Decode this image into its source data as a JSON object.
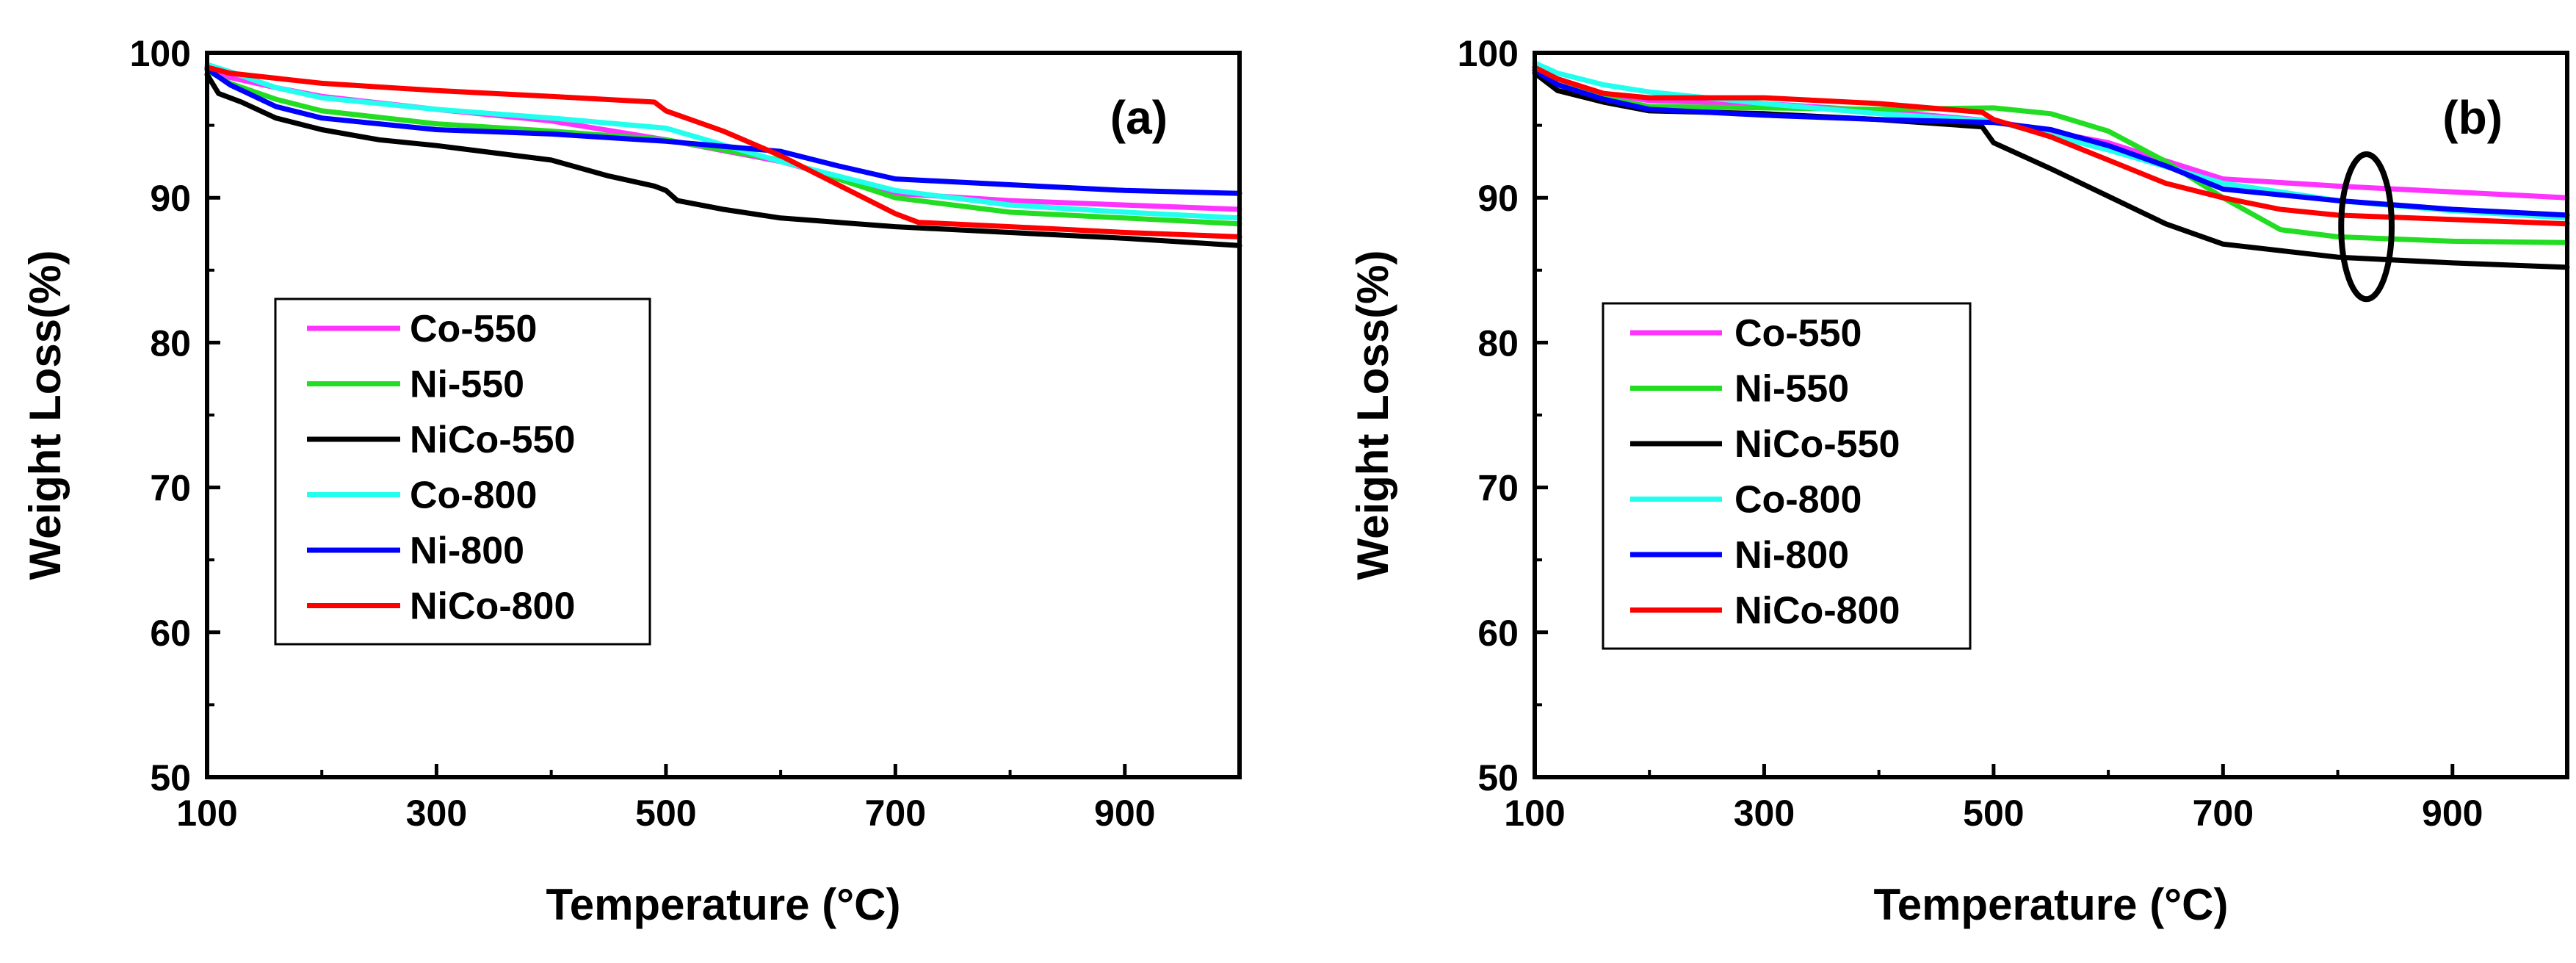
{
  "chart_data": [
    {
      "type": "line",
      "panel_label": "(a)",
      "xlabel": "Temperature (°C)",
      "ylabel": "Weight Loss(%)",
      "xlim": [
        100,
        1000
      ],
      "ylim": [
        50,
        100
      ],
      "xticks": [
        100,
        300,
        500,
        700,
        900
      ],
      "xtick_labels": [
        "100",
        "300",
        "500",
        "700",
        "900"
      ],
      "yticks": [
        50,
        60,
        70,
        80,
        90,
        100
      ],
      "ytick_labels": [
        "50",
        "60",
        "70",
        "80",
        "90",
        "100"
      ],
      "legend_placement": "lower-left",
      "series": [
        {
          "name": "Co-550",
          "color": "#ff33ff",
          "x": [
            100,
            120,
            160,
            200,
            300,
            400,
            500,
            600,
            700,
            800,
            900,
            1000
          ],
          "y": [
            99,
            98.3,
            97.6,
            97,
            96.1,
            95.3,
            94,
            92.5,
            90.3,
            89.8,
            89.5,
            89.2
          ]
        },
        {
          "name": "Ni-550",
          "color": "#22dd22",
          "x": [
            100,
            120,
            160,
            200,
            300,
            400,
            500,
            600,
            700,
            800,
            900,
            1000
          ],
          "y": [
            98.8,
            97.9,
            96.8,
            96,
            95.1,
            94.6,
            94,
            92.6,
            90,
            89,
            88.6,
            88.2
          ]
        },
        {
          "name": "NiCo-550",
          "color": "#000000",
          "x": [
            100,
            110,
            130,
            160,
            200,
            250,
            300,
            400,
            450,
            490,
            500,
            510,
            550,
            600,
            700,
            800,
            900,
            1000
          ],
          "y": [
            98.5,
            97.2,
            96.6,
            95.5,
            94.7,
            94,
            93.6,
            92.6,
            91.5,
            90.8,
            90.5,
            89.8,
            89.2,
            88.6,
            88,
            87.6,
            87.2,
            86.7
          ]
        },
        {
          "name": "Co-800",
          "color": "#22ffee",
          "x": [
            100,
            120,
            160,
            200,
            300,
            400,
            500,
            600,
            700,
            800,
            900,
            1000
          ],
          "y": [
            99.2,
            98.7,
            97.6,
            96.9,
            96.1,
            95.5,
            94.8,
            92.5,
            90.5,
            89.5,
            89,
            88.6
          ]
        },
        {
          "name": "Ni-800",
          "color": "#0000ff",
          "x": [
            100,
            120,
            160,
            200,
            300,
            400,
            500,
            600,
            650,
            700,
            800,
            900,
            1000
          ],
          "y": [
            98.9,
            97.8,
            96.3,
            95.5,
            94.7,
            94.4,
            93.9,
            93.2,
            92.2,
            91.3,
            90.9,
            90.5,
            90.3
          ]
        },
        {
          "name": "NiCo-800",
          "color": "#ff0000",
          "x": [
            100,
            120,
            200,
            300,
            400,
            490,
            500,
            550,
            600,
            650,
            700,
            720,
            800,
            900,
            1000
          ],
          "y": [
            99,
            98.6,
            97.9,
            97.4,
            97,
            96.6,
            96,
            94.6,
            92.9,
            90.9,
            88.9,
            88.3,
            88,
            87.6,
            87.3
          ]
        }
      ]
    },
    {
      "type": "line",
      "panel_label": "(b)",
      "xlabel": "Temperature (°C)",
      "ylabel": "Weight Loss(%)",
      "xlim": [
        100,
        1000
      ],
      "ylim": [
        50,
        100
      ],
      "xticks": [
        100,
        300,
        500,
        700,
        900
      ],
      "xtick_labels": [
        "100",
        "300",
        "500",
        "700",
        "900"
      ],
      "yticks": [
        50,
        60,
        70,
        80,
        90,
        100
      ],
      "ytick_labels": [
        "50",
        "60",
        "70",
        "80",
        "90",
        "100"
      ],
      "legend_placement": "lower-left",
      "annotation": {
        "type": "ellipse",
        "center": [
          825,
          88
        ],
        "radii": [
          22,
          5
        ]
      },
      "series": [
        {
          "name": "Co-550",
          "color": "#ff33ff",
          "x": [
            100,
            120,
            160,
            200,
            300,
            400,
            500,
            600,
            700,
            800,
            900,
            1000
          ],
          "y": [
            99,
            98.2,
            97.2,
            96.7,
            96.5,
            96,
            95.3,
            93.8,
            91.3,
            90.8,
            90.4,
            90
          ]
        },
        {
          "name": "Ni-550",
          "color": "#22dd22",
          "x": [
            100,
            120,
            160,
            200,
            300,
            400,
            500,
            550,
            600,
            650,
            700,
            750,
            800,
            900,
            1000
          ],
          "y": [
            98.8,
            97.8,
            96.9,
            96.3,
            96.2,
            96.1,
            96.2,
            95.8,
            94.6,
            92.5,
            90,
            87.8,
            87.3,
            87,
            86.9
          ]
        },
        {
          "name": "NiCo-550",
          "color": "#000000",
          "x": [
            100,
            120,
            160,
            200,
            300,
            400,
            490,
            500,
            550,
            600,
            650,
            700,
            800,
            900,
            1000
          ],
          "y": [
            98.6,
            97.4,
            96.6,
            96,
            95.8,
            95.4,
            94.9,
            93.8,
            92,
            90.1,
            88.2,
            86.8,
            85.9,
            85.5,
            85.2
          ]
        },
        {
          "name": "Co-800",
          "color": "#22ffee",
          "x": [
            100,
            120,
            160,
            200,
            300,
            400,
            500,
            600,
            700,
            800,
            900,
            1000
          ],
          "y": [
            99.3,
            98.6,
            97.8,
            97.3,
            96.5,
            95.8,
            95.3,
            93.3,
            91,
            89.8,
            89.1,
            88.6
          ]
        },
        {
          "name": "Ni-800",
          "color": "#0000ff",
          "x": [
            100,
            120,
            160,
            200,
            300,
            400,
            500,
            550,
            600,
            650,
            700,
            800,
            900,
            1000
          ],
          "y": [
            98.8,
            97.8,
            96.8,
            96.1,
            95.7,
            95.4,
            95.2,
            94.7,
            93.6,
            92.2,
            90.6,
            89.8,
            89.2,
            88.8
          ]
        },
        {
          "name": "NiCo-800",
          "color": "#ff0000",
          "x": [
            100,
            120,
            160,
            200,
            300,
            400,
            490,
            500,
            550,
            600,
            650,
            700,
            750,
            800,
            900,
            1000
          ],
          "y": [
            99,
            98.2,
            97.2,
            96.9,
            96.9,
            96.5,
            95.9,
            95.4,
            94.2,
            92.6,
            91,
            90,
            89.2,
            88.8,
            88.5,
            88.2
          ]
        }
      ]
    }
  ]
}
